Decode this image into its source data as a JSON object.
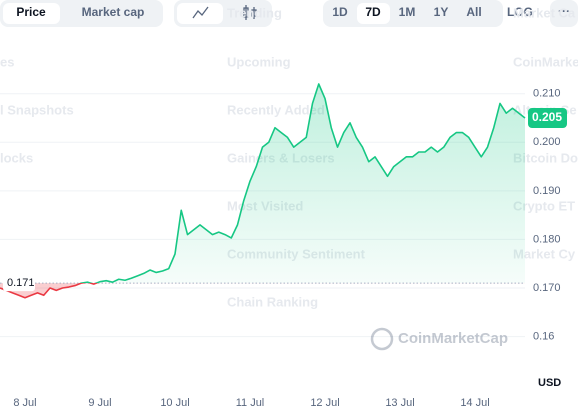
{
  "toolbar": {
    "tabs": [
      "Price",
      "Market cap"
    ],
    "ranges": [
      "1D",
      "7D",
      "1M",
      "1Y",
      "All"
    ],
    "log": "LOG",
    "more": "···"
  },
  "background_menu": {
    "left": [
      "es",
      "l Snapshots",
      "locks"
    ],
    "center": [
      "Trending",
      "Upcoming",
      "Recently Added",
      "Gainers & Losers",
      "Most Visited",
      "Community Sentiment",
      "Chain Ranking"
    ],
    "right": [
      "Market Ca",
      "CoinMarke",
      "Altcoin Se",
      "Bitcoin Do",
      "Crypto ET",
      "Market Cy"
    ]
  },
  "watermark": "CoinMarketCap",
  "chart_data": {
    "type": "line",
    "y_axis_label": "USD",
    "categories": [
      null,
      null,
      null,
      null,
      "8 Jul",
      null,
      null,
      null,
      null,
      null,
      null,
      null,
      null,
      null,
      null,
      null,
      "9 Jul",
      null,
      null,
      null,
      null,
      null,
      null,
      null,
      null,
      null,
      null,
      null,
      "10 Jul",
      null,
      null,
      null,
      null,
      null,
      null,
      null,
      null,
      null,
      null,
      null,
      "11 Jul",
      null,
      null,
      null,
      null,
      null,
      null,
      null,
      null,
      null,
      null,
      null,
      "12 Jul",
      null,
      null,
      null,
      null,
      null,
      null,
      null,
      null,
      null,
      null,
      null,
      "13 Jul",
      null,
      null,
      null,
      null,
      null,
      null,
      null,
      null,
      null,
      null,
      null,
      "14 Jul",
      null,
      null,
      null,
      null,
      null,
      null,
      null,
      null
    ],
    "values": [
      0.17,
      0.1695,
      0.169,
      0.1685,
      0.168,
      0.1685,
      0.169,
      0.1685,
      0.17,
      0.1695,
      0.17,
      0.1702,
      0.1705,
      0.171,
      0.1712,
      0.1708,
      0.1713,
      0.1715,
      0.1712,
      0.1718,
      0.1716,
      0.172,
      0.1725,
      0.173,
      0.1737,
      0.1732,
      0.1735,
      0.174,
      0.177,
      0.186,
      0.181,
      0.182,
      0.183,
      0.182,
      0.181,
      0.1815,
      0.181,
      0.1803,
      0.183,
      0.188,
      0.192,
      0.195,
      0.199,
      0.2,
      0.203,
      0.202,
      0.201,
      0.199,
      0.2,
      0.201,
      0.208,
      0.212,
      0.209,
      0.203,
      0.199,
      0.202,
      0.204,
      0.201,
      0.199,
      0.196,
      0.197,
      0.195,
      0.193,
      0.195,
      0.196,
      0.197,
      0.197,
      0.198,
      0.198,
      0.199,
      0.198,
      0.199,
      0.201,
      0.202,
      0.202,
      0.201,
      0.199,
      0.197,
      0.199,
      0.203,
      0.208,
      0.206,
      0.207,
      0.206,
      0.205
    ],
    "up_color": "#16c784",
    "down_color": "#ea3943",
    "baseline": 0.171,
    "current_price": 0.205,
    "ylim": [
      0.149,
      0.219
    ],
    "yticks": [
      {
        "value": 0.21,
        "label": "0.210"
      },
      {
        "value": 0.2,
        "label": "0.200"
      },
      {
        "value": 0.19,
        "label": "0.190"
      },
      {
        "value": 0.18,
        "label": "0.180"
      },
      {
        "value": 0.17,
        "label": "0.170"
      },
      0.16
    ],
    "grid": true
  }
}
